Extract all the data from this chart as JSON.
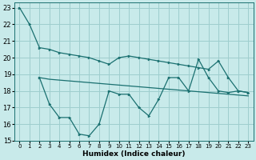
{
  "background_color": "#c8eaea",
  "grid_color": "#9ecece",
  "line_color": "#1a7070",
  "x_label": "Humidex (Indice chaleur)",
  "xlim": [
    -0.5,
    23.5
  ],
  "ylim": [
    15,
    23.3
  ],
  "yticks": [
    15,
    16,
    17,
    18,
    19,
    20,
    21,
    22,
    23
  ],
  "xticks": [
    0,
    1,
    2,
    3,
    4,
    5,
    6,
    7,
    8,
    9,
    10,
    11,
    12,
    13,
    14,
    15,
    16,
    17,
    18,
    19,
    20,
    21,
    22,
    23
  ],
  "series1_x": [
    0,
    1,
    2,
    3,
    4,
    5,
    6,
    7,
    8,
    9,
    10,
    11,
    12,
    13,
    14,
    15,
    16,
    17,
    18,
    19,
    20,
    21,
    22,
    23
  ],
  "series1_y": [
    23,
    22,
    20.6,
    20.5,
    20.3,
    20.2,
    20.1,
    20.0,
    19.8,
    19.6,
    20.0,
    20.1,
    20.0,
    19.9,
    19.8,
    19.7,
    19.6,
    19.5,
    19.4,
    19.3,
    19.8,
    18.8,
    18.0,
    17.9
  ],
  "series2_x": [
    2,
    3,
    4,
    5,
    6,
    7,
    8,
    9,
    10,
    11,
    12,
    13,
    14,
    15,
    16,
    17,
    18,
    19,
    20,
    21,
    22,
    23
  ],
  "series2_y": [
    18.8,
    17.2,
    16.4,
    16.4,
    15.4,
    15.3,
    16.0,
    18.0,
    17.8,
    17.8,
    17.0,
    16.5,
    17.5,
    18.8,
    18.8,
    18.0,
    19.9,
    18.8,
    18.0,
    17.9,
    18.0,
    17.9
  ],
  "series3_x": [
    2,
    3,
    4,
    5,
    6,
    7,
    8,
    9,
    10,
    11,
    12,
    13,
    14,
    15,
    16,
    17,
    18,
    19,
    20,
    21,
    22,
    23
  ],
  "series3_y": [
    18.8,
    18.7,
    18.65,
    18.6,
    18.55,
    18.5,
    18.45,
    18.4,
    18.35,
    18.3,
    18.25,
    18.2,
    18.15,
    18.1,
    18.05,
    18.0,
    17.95,
    17.9,
    17.85,
    17.8,
    17.75,
    17.7
  ]
}
